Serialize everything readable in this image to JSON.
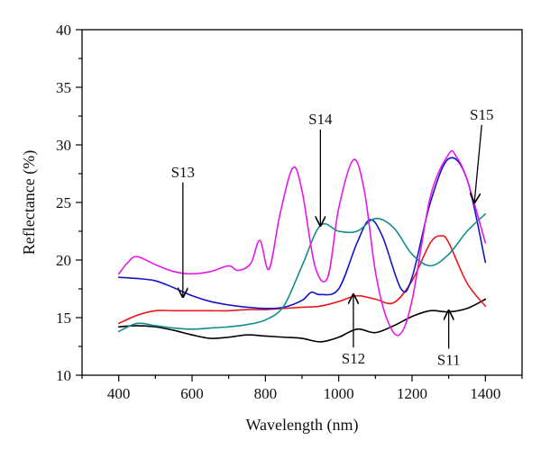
{
  "chart_data": {
    "type": "line",
    "xlabel": "Wavelength (nm)",
    "ylabel": "Reflectance (%)",
    "xlim": [
      300,
      1500
    ],
    "ylim": [
      10,
      40
    ],
    "xticks": [
      400,
      600,
      800,
      1000,
      1200,
      1400
    ],
    "yticks": [
      10,
      15,
      20,
      25,
      30,
      35,
      40
    ],
    "grid": false,
    "series": [
      {
        "name": "S11",
        "color": "#000000",
        "x": [
          400,
          450,
          500,
          550,
          600,
          650,
          700,
          750,
          800,
          850,
          900,
          950,
          1000,
          1050,
          1100,
          1150,
          1200,
          1250,
          1300,
          1350,
          1400
        ],
        "y": [
          14.2,
          14.3,
          14.2,
          13.9,
          13.5,
          13.2,
          13.3,
          13.5,
          13.4,
          13.3,
          13.2,
          12.9,
          13.3,
          14.0,
          13.7,
          14.3,
          15.1,
          15.6,
          15.5,
          15.8,
          16.6
        ]
      },
      {
        "name": "S12",
        "color": "#e8191b",
        "x": [
          400,
          450,
          500,
          550,
          600,
          650,
          700,
          750,
          800,
          850,
          900,
          950,
          1000,
          1050,
          1100,
          1150,
          1200,
          1250,
          1280,
          1300,
          1350,
          1400
        ],
        "y": [
          14.5,
          15.2,
          15.6,
          15.6,
          15.6,
          15.6,
          15.6,
          15.7,
          15.7,
          15.8,
          15.9,
          16.0,
          16.4,
          16.9,
          16.6,
          16.3,
          18.2,
          21.5,
          22.1,
          21.5,
          18.0,
          16.0
        ]
      },
      {
        "name": "S13",
        "color": "#1414c8",
        "x": [
          400,
          450,
          500,
          550,
          600,
          650,
          700,
          750,
          800,
          850,
          900,
          925,
          950,
          1000,
          1050,
          1085,
          1120,
          1170,
          1200,
          1250,
          1300,
          1350,
          1400
        ],
        "y": [
          18.5,
          18.4,
          18.2,
          17.6,
          16.9,
          16.4,
          16.1,
          15.9,
          15.8,
          15.9,
          16.5,
          17.2,
          17.0,
          17.5,
          21.5,
          23.5,
          22.0,
          17.5,
          18.5,
          25.0,
          28.8,
          27.0,
          19.8
        ]
      },
      {
        "name": "S14",
        "color": "#148c8c",
        "x": [
          400,
          450,
          500,
          550,
          600,
          650,
          700,
          750,
          800,
          850,
          900,
          950,
          1000,
          1050,
          1100,
          1150,
          1200,
          1250,
          1300,
          1350,
          1400
        ],
        "y": [
          13.8,
          14.5,
          14.3,
          14.1,
          14.0,
          14.1,
          14.2,
          14.4,
          14.8,
          16.0,
          19.5,
          23.0,
          22.5,
          22.5,
          23.6,
          22.8,
          20.5,
          19.5,
          20.5,
          22.5,
          24.0
        ]
      },
      {
        "name": "S15",
        "color": "#e619e6",
        "x": [
          400,
          425,
          450,
          500,
          550,
          600,
          650,
          700,
          725,
          760,
          785,
          810,
          840,
          875,
          900,
          935,
          970,
          1000,
          1040,
          1070,
          1100,
          1130,
          1165,
          1200,
          1250,
          1300,
          1320,
          1350,
          1400
        ],
        "y": [
          18.8,
          19.8,
          20.3,
          19.6,
          19.0,
          18.8,
          19.0,
          19.5,
          19.1,
          19.7,
          21.7,
          19.2,
          24.0,
          28.0,
          26.0,
          19.5,
          18.5,
          24.5,
          28.7,
          26.0,
          19.0,
          15.0,
          13.5,
          16.5,
          25.5,
          29.2,
          29.0,
          27.0,
          21.5
        ]
      }
    ],
    "annotations": [
      {
        "text": "S13",
        "label_x": 575,
        "label_y": 27.2,
        "arrow_to": [
          575,
          16.8
        ]
      },
      {
        "text": "S14",
        "label_x": 950,
        "label_y": 31.8,
        "arrow_to": [
          950,
          23.0
        ]
      },
      {
        "text": "S15",
        "label_x": 1390,
        "label_y": 32.2,
        "arrow_to": [
          1370,
          25.0
        ]
      },
      {
        "text": "S12",
        "label_x": 1040,
        "label_y": 11.0,
        "arrow_to": [
          1040,
          17.0
        ]
      },
      {
        "text": "S11",
        "label_x": 1300,
        "label_y": 10.9,
        "arrow_to": [
          1300,
          15.6
        ]
      }
    ]
  }
}
